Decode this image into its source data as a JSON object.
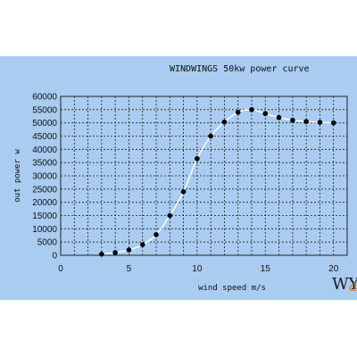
{
  "chart_data": {
    "type": "line",
    "title": "WINDWINGS 50kw power curve",
    "xlabel": "wind speed m/s",
    "ylabel": "out power w",
    "xlim": [
      0,
      21
    ],
    "ylim": [
      0,
      60000
    ],
    "xticks": [
      0,
      5,
      10,
      15,
      20
    ],
    "yticks": [
      0,
      5000,
      10000,
      15000,
      20000,
      25000,
      30000,
      35000,
      40000,
      45000,
      50000,
      55000,
      60000
    ],
    "grid": true,
    "series": [
      {
        "x": [
          3,
          4,
          5,
          6,
          7,
          8,
          9,
          10,
          11,
          12,
          13,
          14,
          15,
          16,
          17,
          18,
          19,
          20
        ],
        "y": [
          400,
          1000,
          2000,
          4000,
          7800,
          15000,
          24000,
          36500,
          45000,
          50300,
          54000,
          55000,
          53500,
          52000,
          51000,
          50500,
          50200,
          50000
        ]
      }
    ],
    "colors": {
      "curve": "#ffffff",
      "points": "#000000",
      "grid": "#222222"
    }
  },
  "logo": {
    "text": "WY",
    "accent": "a"
  }
}
